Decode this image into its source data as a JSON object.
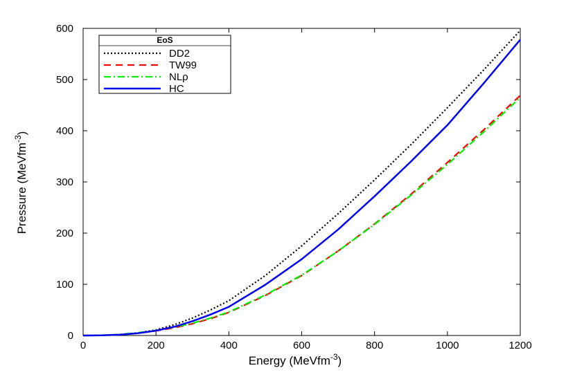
{
  "chart_data": {
    "type": "line",
    "xlabel": "Energy (MeVfm",
    "xlabel_sup": "-3",
    "xlabel_close": ")",
    "ylabel": "Pressure (MeVfm",
    "ylabel_sup": "-3",
    "ylabel_close": ")",
    "xlim": [
      0,
      1200
    ],
    "ylim": [
      0,
      600
    ],
    "xticks": [
      0,
      200,
      400,
      600,
      800,
      1000,
      1200
    ],
    "yticks": [
      0,
      100,
      200,
      300,
      400,
      500,
      600
    ],
    "xtick_labels": [
      "0",
      "200",
      "400",
      "600",
      "800",
      "1000",
      "1200"
    ],
    "ytick_labels": [
      "0",
      "100",
      "200",
      "300",
      "400",
      "500",
      "600"
    ],
    "grid": false,
    "legend": {
      "title": "EoS",
      "placement": "top-left"
    },
    "series": [
      {
        "name": "DD2",
        "color": "#000000",
        "style": "dotted",
        "x": [
          0,
          50,
          100,
          150,
          200,
          250,
          300,
          350,
          400,
          500,
          600,
          700,
          800,
          900,
          1000,
          1100,
          1200
        ],
        "y": [
          0,
          0.3,
          1.5,
          5,
          11,
          21,
          34,
          50,
          68,
          117,
          175,
          238,
          304,
          373,
          445,
          519,
          596
        ]
      },
      {
        "name": "TW99",
        "color": "#ff0000",
        "style": "dashed",
        "x": [
          0,
          50,
          100,
          150,
          200,
          250,
          300,
          350,
          400,
          500,
          600,
          700,
          800,
          900,
          1000,
          1100,
          1200
        ],
        "y": [
          0,
          0.3,
          1.5,
          4.5,
          9,
          15,
          23,
          33,
          45,
          78,
          117,
          165,
          218,
          276,
          338,
          402,
          469
        ]
      },
      {
        "name": "NLρ",
        "color": "#00ee00",
        "style": "dashdot",
        "x": [
          0,
          50,
          100,
          150,
          200,
          250,
          300,
          350,
          400,
          500,
          600,
          700,
          800,
          900,
          1000,
          1100,
          1200
        ],
        "y": [
          0,
          0.4,
          2,
          5.5,
          10,
          16,
          24,
          34,
          46,
          79,
          118,
          165,
          217,
          274,
          334,
          398,
          465
        ]
      },
      {
        "name": "HC",
        "color": "#0000ee",
        "style": "solid",
        "x": [
          0,
          50,
          100,
          150,
          200,
          250,
          300,
          350,
          400,
          500,
          600,
          700,
          800,
          900,
          1000,
          1100,
          1200
        ],
        "y": [
          0,
          0.3,
          1.5,
          4.5,
          9.5,
          17,
          28,
          41,
          56,
          99,
          149,
          207,
          272,
          340,
          411,
          493,
          578
        ]
      }
    ]
  }
}
